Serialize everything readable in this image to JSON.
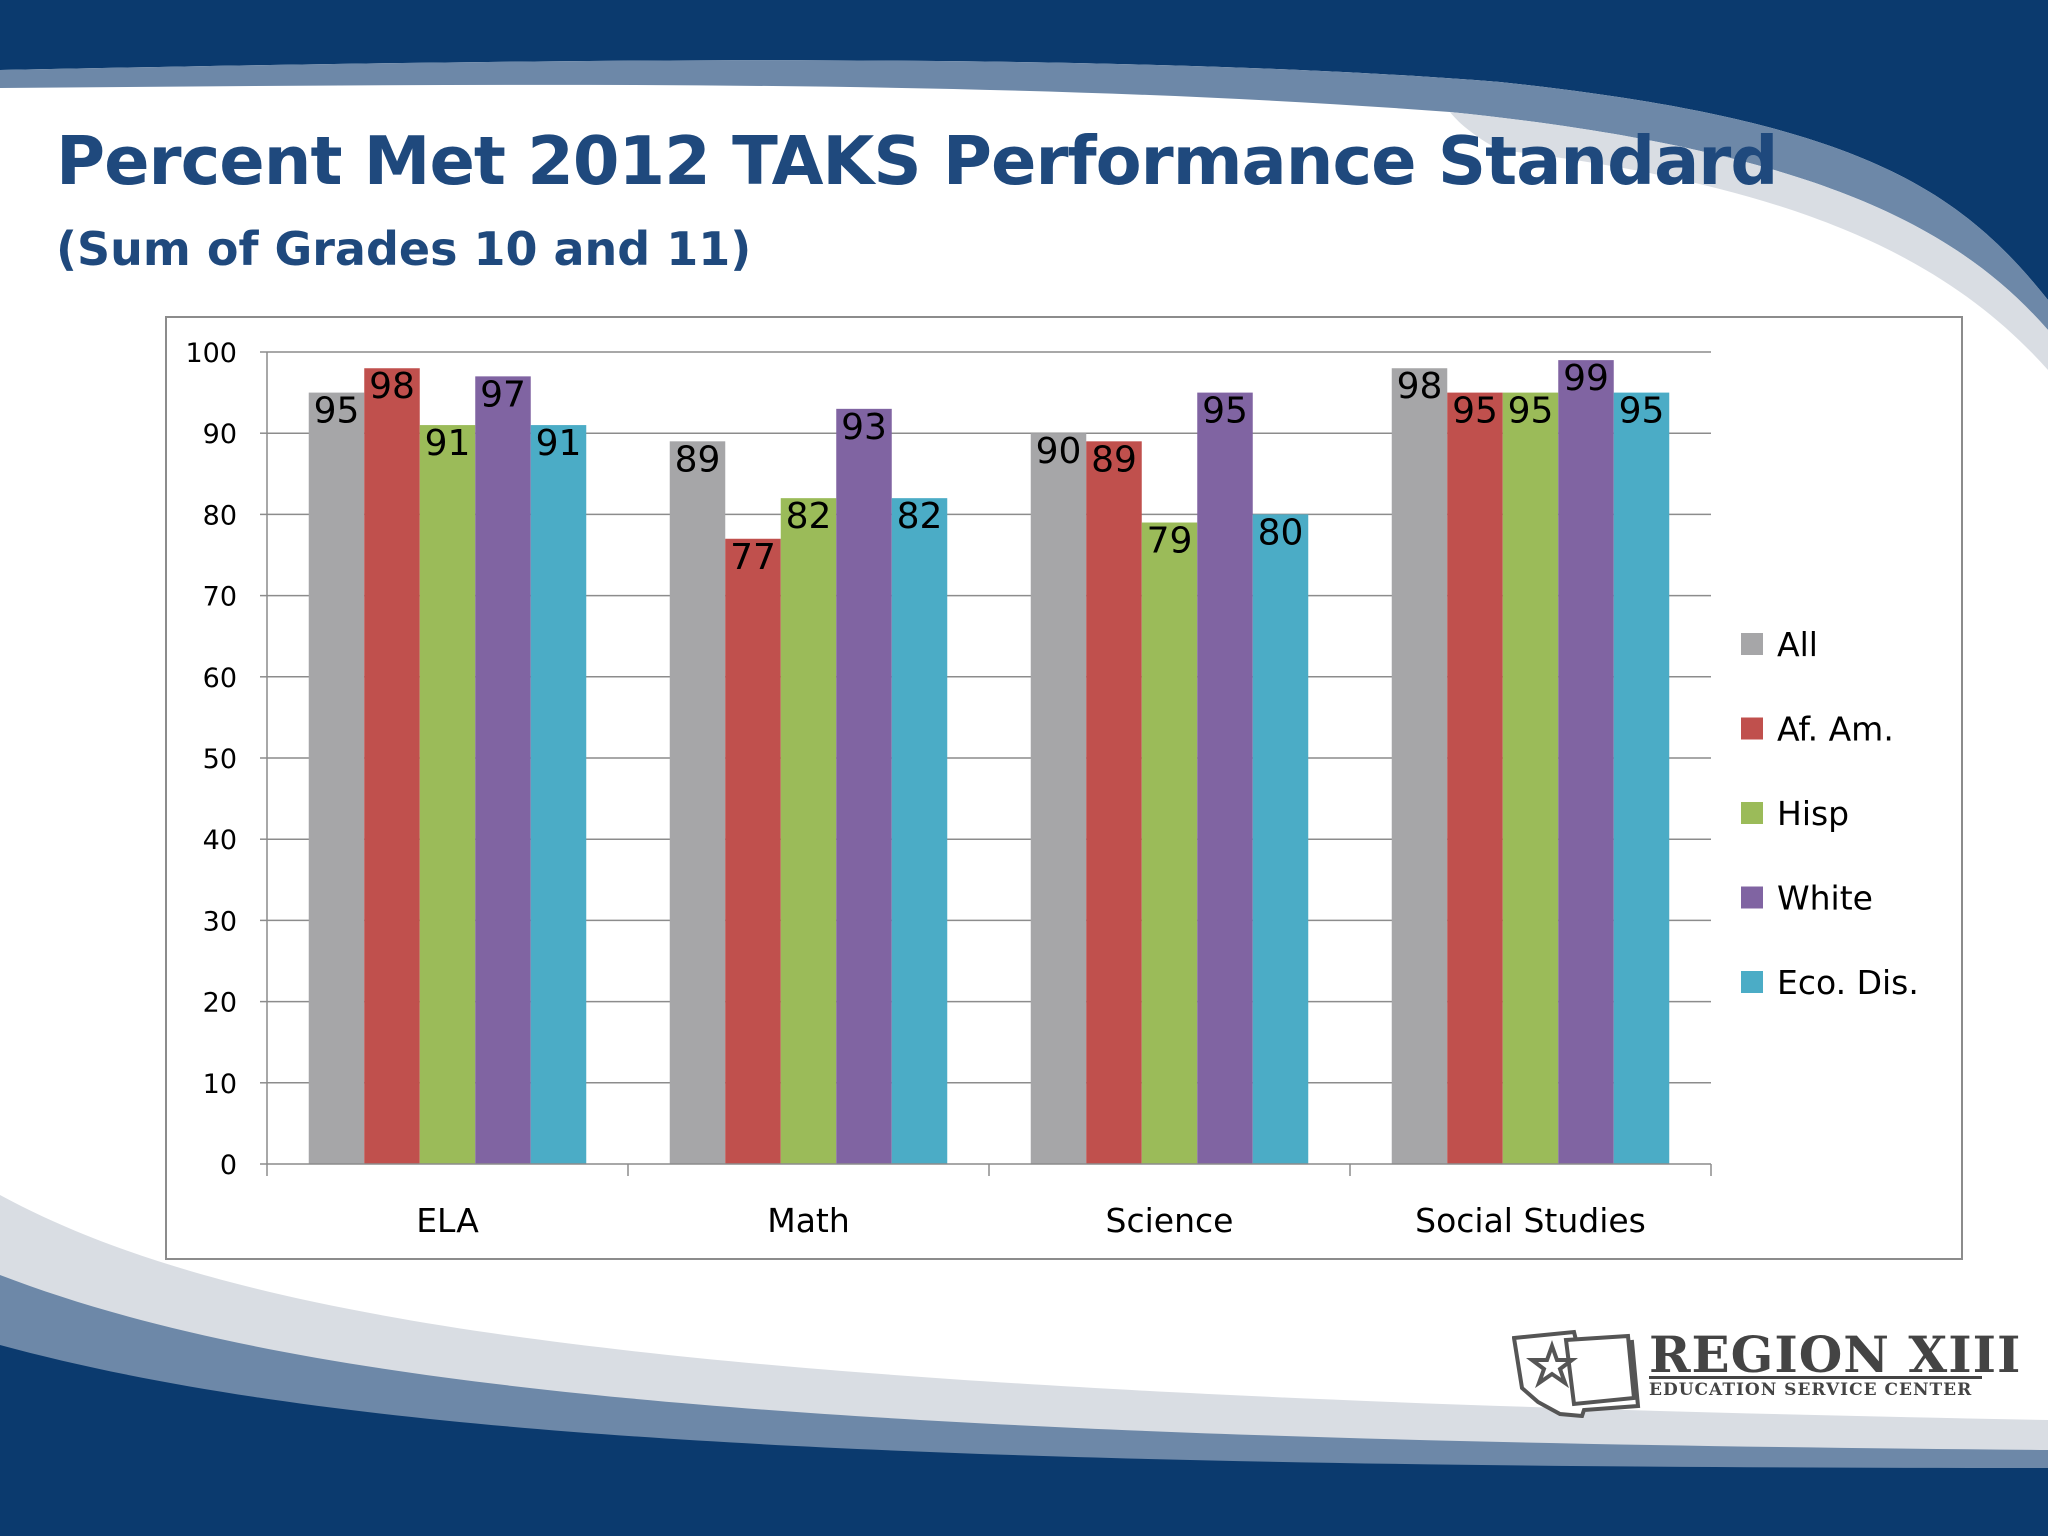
{
  "slide": {
    "title": "Percent Met 2012 TAKS Performance Standard",
    "subtitle": "(Sum of Grades 10 and 11)",
    "logo": {
      "name": "REGION XIII",
      "tagline": "EDUCATION SERVICE CENTER",
      "icon": "texas-star-map-icon"
    },
    "colors": {
      "title": "#1f497d",
      "banner_dark": "#0b3a6e",
      "banner_mid": "#6d88a8",
      "banner_light": "#d9dde3"
    }
  },
  "chart_data": {
    "type": "bar",
    "categories": [
      "ELA",
      "Math",
      "Science",
      "Social Studies"
    ],
    "series": [
      {
        "name": "All",
        "color": "#a6a6a8",
        "values": [
          95,
          89,
          90,
          98
        ]
      },
      {
        "name": "Af. Am.",
        "color": "#c0504d",
        "values": [
          98,
          77,
          89,
          95
        ]
      },
      {
        "name": "Hisp",
        "color": "#9bbb59",
        "values": [
          91,
          82,
          79,
          95
        ]
      },
      {
        "name": "White",
        "color": "#8064a2",
        "values": [
          97,
          93,
          95,
          99
        ]
      },
      {
        "name": "Eco. Dis.",
        "color": "#4bacc6",
        "values": [
          91,
          82,
          80,
          95
        ]
      }
    ],
    "yticks": [
      0,
      10,
      20,
      30,
      40,
      50,
      60,
      70,
      80,
      90,
      100
    ],
    "ylim": [
      0,
      100
    ],
    "grid": true,
    "legend_position": "right",
    "data_labels": true
  }
}
